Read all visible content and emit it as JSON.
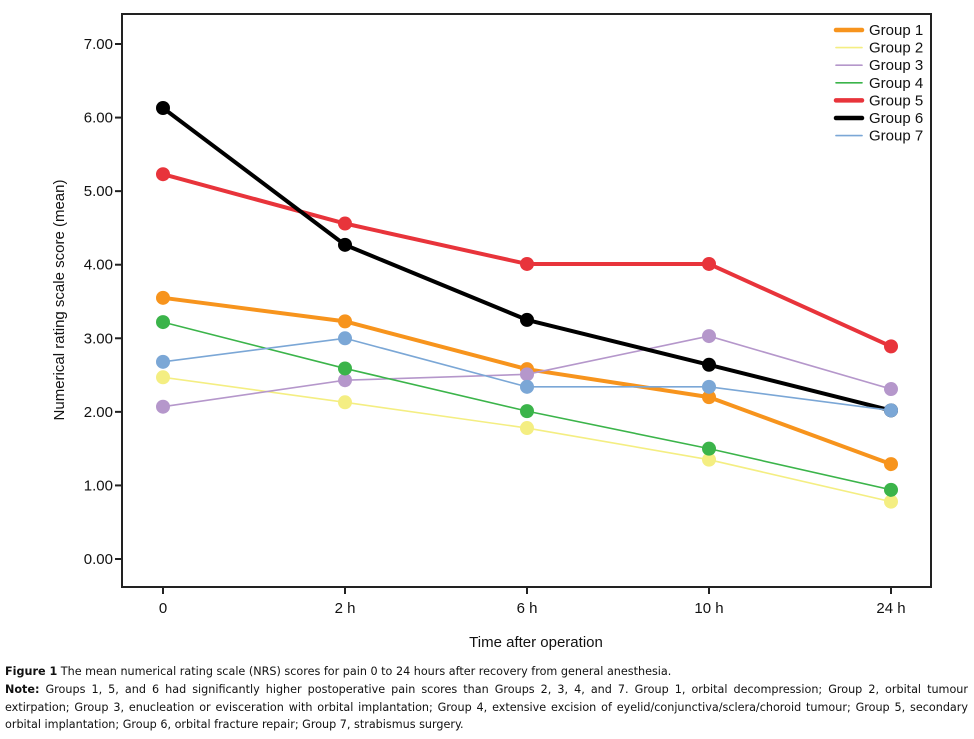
{
  "chart_data": {
    "type": "line",
    "title": "",
    "xlabel": "Time after operation",
    "ylabel": "Numerical rating scale score (mean)",
    "categories": [
      "0",
      "2 h",
      "6 h",
      "10 h",
      "24 h"
    ],
    "ylim": [
      0,
      7
    ],
    "yticks": [
      "0.00",
      "1.00",
      "2.00",
      "3.00",
      "4.00",
      "5.00",
      "6.00",
      "7.00"
    ],
    "grid": false,
    "legend_position": "top-right",
    "series": [
      {
        "name": "Group 1",
        "color": "#F7941D",
        "weight": "thick",
        "values": [
          3.55,
          3.23,
          2.58,
          2.2,
          1.29
        ]
      },
      {
        "name": "Group 2",
        "color": "#F4EE82",
        "weight": "thin",
        "values": [
          2.47,
          2.13,
          1.78,
          1.35,
          0.78
        ]
      },
      {
        "name": "Group 3",
        "color": "#B597CB",
        "weight": "thin",
        "values": [
          2.07,
          2.43,
          2.51,
          3.03,
          2.31
        ]
      },
      {
        "name": "Group 4",
        "color": "#3BB44A",
        "weight": "thin",
        "values": [
          3.22,
          2.59,
          2.01,
          1.5,
          0.94
        ]
      },
      {
        "name": "Group 5",
        "color": "#E8343B",
        "weight": "thick",
        "values": [
          5.23,
          4.56,
          4.01,
          4.01,
          2.89
        ]
      },
      {
        "name": "Group 6",
        "color": "#000000",
        "weight": "thick",
        "values": [
          6.13,
          4.27,
          3.25,
          2.64,
          2.02
        ]
      },
      {
        "name": "Group 7",
        "color": "#7BA7D6",
        "weight": "thin",
        "values": [
          2.68,
          3.0,
          2.34,
          2.34,
          2.02
        ]
      }
    ]
  },
  "caption": {
    "figure_label": "Figure 1",
    "figure_text": "The mean numerical rating scale (NRS) scores for pain 0 to 24 hours after recovery from general anesthesia.",
    "note_label": "Note:",
    "note_text": "Groups 1, 5, and 6 had significantly higher postoperative pain scores than Groups 2, 3, 4, and 7. Group 1, orbital decompression; Group 2, orbital tumour extirpation; Group 3, enucleation or evisceration with orbital implantation; Group 4, extensive excision of eyelid/conjunctiva/sclera/choroid tumour; Group 5, secondary orbital implantation; Group 6, orbital fracture repair; Group 7, strabismus surgery."
  }
}
